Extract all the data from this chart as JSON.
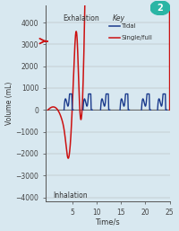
{
  "title": "",
  "xlabel": "Time/s",
  "ylabel": "Volume (mL)",
  "ylim": [
    -4200,
    4800
  ],
  "xlim": [
    -0.5,
    25
  ],
  "yticks": [
    -4000,
    -3000,
    -2000,
    -1000,
    0,
    1000,
    2000,
    3000,
    4000
  ],
  "xticks": [
    5,
    10,
    15,
    20,
    25
  ],
  "bg_color": "#d8e8f0",
  "tidal_color": "#1a3a8c",
  "single_color": "#cc1111",
  "arrow_color": "#cc1111",
  "exhalation_label": "Exhalation",
  "inhalation_label": "Inhalation",
  "key_label": "Key",
  "tidal_label": "Tidal",
  "single_label": "Single/full",
  "badge_color": "#2ab5a5",
  "badge_number": "2",
  "axis_color": "#555555"
}
